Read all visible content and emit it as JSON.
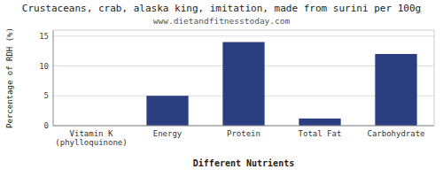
{
  "chart_data": {
    "type": "bar",
    "title": "Crustaceans, crab, alaska king, imitation, made from surini per 100g",
    "subtitle": "www.dietandfitnesstoday.com",
    "xlabel": "Different Nutrients",
    "ylabel": "Percentage of RDH (%)",
    "categories": [
      "Vitamin K (phylloquinone)",
      "Energy",
      "Protein",
      "Total Fat",
      "Carbohydrate"
    ],
    "values": [
      0,
      5,
      14,
      1.2,
      12
    ],
    "color": "#2b3f80",
    "ylim": [
      0,
      16
    ],
    "yticks": [
      0,
      5,
      10,
      15
    ],
    "grid": true
  }
}
